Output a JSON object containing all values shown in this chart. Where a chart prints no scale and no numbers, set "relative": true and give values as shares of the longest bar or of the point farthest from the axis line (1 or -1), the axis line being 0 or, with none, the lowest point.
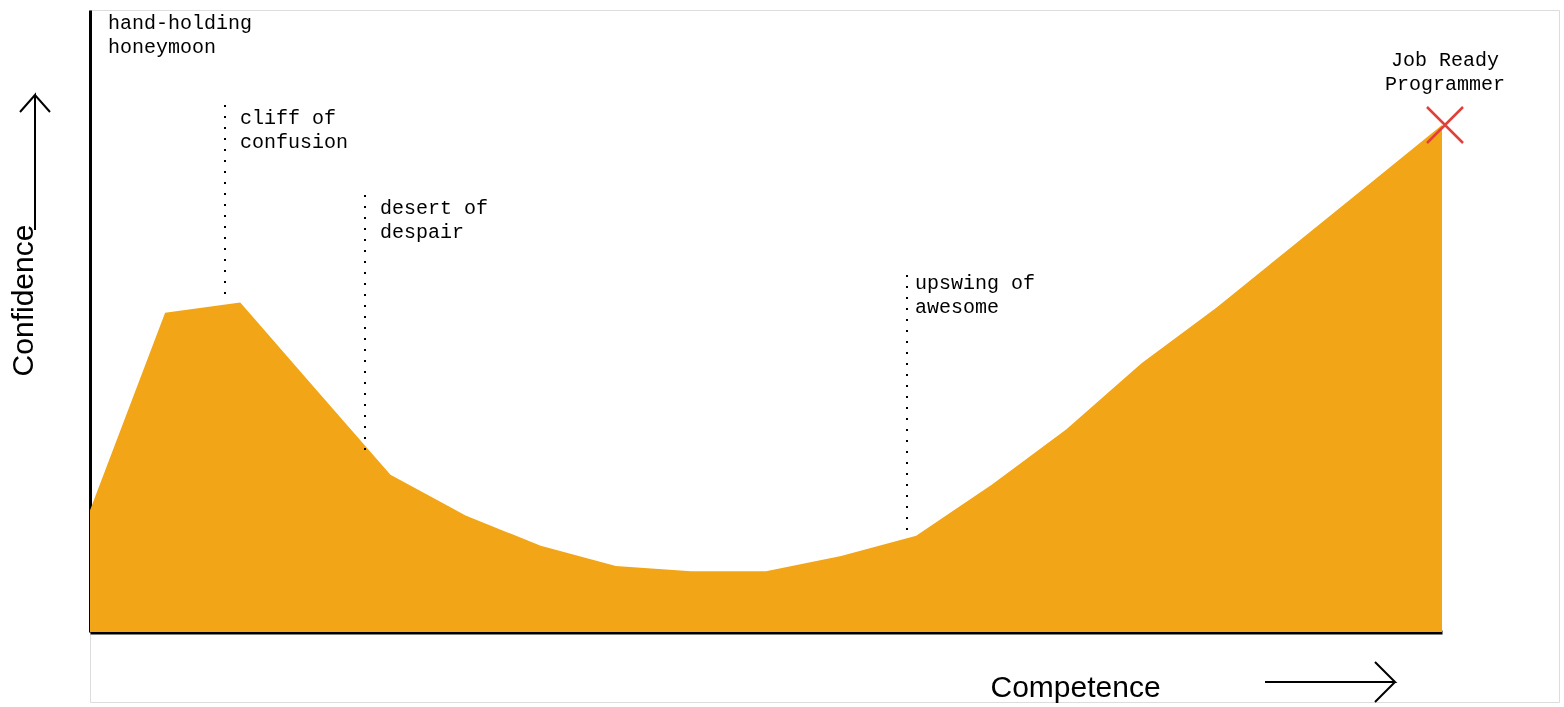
{
  "chart_data": {
    "type": "area",
    "relative": true,
    "xlabel": "Competence",
    "ylabel": "Confidence",
    "categories": [
      null,
      null,
      null,
      null,
      null,
      null,
      null,
      null,
      null,
      null,
      null,
      null,
      null,
      null,
      null,
      null,
      null,
      null,
      null
    ],
    "series": [
      {
        "color": "#f2a516",
        "values": [
          0.24,
          0.63,
          0.65,
          0.48,
          0.31,
          0.23,
          0.17,
          0.13,
          0.12,
          0.12,
          0.15,
          0.19,
          0.29,
          0.4,
          0.53,
          0.64,
          0.76,
          0.88,
          1.0
        ]
      }
    ],
    "annotations": [
      "hand-holding\nhoneymoon",
      "cliff of\nconfusion",
      "desert of\ndespair",
      "upswing of\nawesome",
      "Job Ready\nProgrammer"
    ]
  }
}
